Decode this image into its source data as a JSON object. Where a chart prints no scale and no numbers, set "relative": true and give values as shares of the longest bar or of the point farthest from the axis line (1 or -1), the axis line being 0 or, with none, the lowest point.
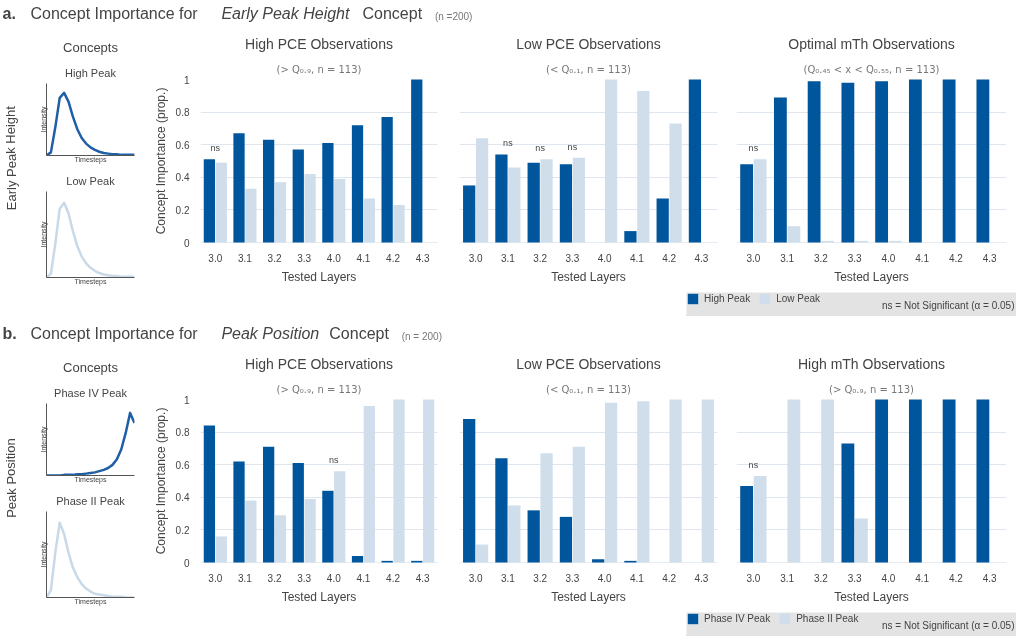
{
  "chart_data": [
    {
      "type": "line",
      "title": "High Peak",
      "xlabel": "Timesteps",
      "ylabel": "Intensity",
      "relative": true,
      "tick_labels": false,
      "categories": [
        null,
        null,
        null,
        null,
        null,
        null,
        null,
        null,
        null,
        null,
        null,
        null,
        null,
        null,
        null,
        null,
        null,
        null,
        null,
        null,
        null
      ],
      "series": [
        {
          "color": "#1f5fa6",
          "values": [
            0,
            0.05,
            0.45,
            0.92,
            1.0,
            0.86,
            0.62,
            0.42,
            0.28,
            0.19,
            0.13,
            0.09,
            0.06,
            0.04,
            0.03,
            0.02,
            0.02,
            0.01,
            0.01,
            0.01,
            0.01
          ]
        }
      ],
      "annotations": [
        "a.",
        "Concept Importance for ",
        "Early Peak Height",
        " Concept",
        "(n =200)",
        "Concepts",
        "Early Peak Height"
      ]
    },
    {
      "type": "line",
      "title": "Low Peak",
      "xlabel": "Timesteps",
      "ylabel": "Intensity",
      "relative": true,
      "tick_labels": false,
      "categories": [
        null,
        null,
        null,
        null,
        null,
        null,
        null,
        null,
        null,
        null,
        null,
        null,
        null,
        null,
        null,
        null,
        null,
        null,
        null,
        null,
        null
      ],
      "series": [
        {
          "color": "#c9d9e8",
          "values": [
            0,
            0.05,
            0.45,
            0.92,
            1.0,
            0.86,
            0.62,
            0.42,
            0.28,
            0.19,
            0.13,
            0.09,
            0.06,
            0.04,
            0.03,
            0.02,
            0.02,
            0.01,
            0.01,
            0.01,
            0.01
          ]
        }
      ]
    },
    {
      "type": "bar",
      "title": "High PCE Observations",
      "subtitle": "(> Q₀.₉, n = 113)",
      "xlabel": "Tested Layers",
      "ylabel": "Concept Importance (prop.)",
      "categories": [
        "3.0",
        "3.1",
        "3.2",
        "3.3",
        "4.0",
        "4.1",
        "4.2",
        "4.3"
      ],
      "ylim": [
        0,
        1
      ],
      "yticks": [
        0,
        0.2,
        0.4,
        0.6,
        0.8,
        1
      ],
      "grid": "y",
      "series": [
        {
          "color": "#00569c",
          "values": [
            0.51,
            0.67,
            0.63,
            0.57,
            0.61,
            0.72,
            0.77,
            1.0
          ]
        },
        {
          "color": "#cfdeea",
          "values": [
            0.49,
            0.33,
            0.37,
            0.42,
            0.39,
            0.27,
            0.23,
            0
          ]
        }
      ],
      "annotations": [
        {
          "text": "ns",
          "x": "3.0",
          "y": 0.51
        }
      ]
    },
    {
      "type": "bar",
      "title": "Low PCE Observations",
      "subtitle": "(< Q₀.₁, n = 113)",
      "xlabel": "Tested Layers",
      "categories": [
        "3.0",
        "3.1",
        "3.2",
        "3.3",
        "4.0",
        "4.1",
        "4.2",
        "4.3"
      ],
      "ylim": [
        0,
        1
      ],
      "yticks": [
        0,
        0.2,
        0.4,
        0.6,
        0.8,
        1
      ],
      "grid": "y",
      "tick_labels": "x",
      "series": [
        {
          "color": "#00569c",
          "values": [
            0.35,
            0.54,
            0.49,
            0.48,
            0,
            0.07,
            0.27,
            1.0
          ]
        },
        {
          "color": "#cfdeea",
          "values": [
            0.64,
            0.46,
            0.51,
            0.52,
            1.0,
            0.93,
            0.73,
            0
          ]
        }
      ],
      "annotations": [
        {
          "text": "ns",
          "x": "3.1",
          "y": 0.54
        },
        {
          "text": "ns",
          "x": "3.2",
          "y": 0.51
        },
        {
          "text": "ns",
          "x": "3.3",
          "y": 0.52
        }
      ]
    },
    {
      "type": "bar",
      "title": "Optimal mTh Observations",
      "subtitle": "(Q₀.₄₅ < x < Q₀.₅₅, n = 113)",
      "xlabel": "Tested Layers",
      "categories": [
        "3.0",
        "3.1",
        "3.2",
        "3.3",
        "4.0",
        "4.1",
        "4.2",
        "4.3"
      ],
      "ylim": [
        0,
        1
      ],
      "yticks": [
        0,
        0.2,
        0.4,
        0.6,
        0.8,
        1
      ],
      "grid": "y",
      "tick_labels": "x",
      "legend": "bottom",
      "series": [
        {
          "name": "High Peak",
          "color": "#00569c",
          "values": [
            0.48,
            0.89,
            0.99,
            0.98,
            0.99,
            1.0,
            1.0,
            1.0
          ]
        },
        {
          "name": "Low Peak",
          "color": "#cfdeea",
          "values": [
            0.51,
            0.1,
            0.01,
            0.01,
            0.01,
            0,
            0,
            0
          ]
        }
      ],
      "annotations": [
        {
          "text": "ns",
          "x": "3.0",
          "y": 0.51
        },
        "ns = Not Significant (α = 0.05)"
      ]
    },
    {
      "type": "line",
      "title": "Phase IV Peak",
      "xlabel": "Timesteps",
      "ylabel": "Intensity",
      "relative": true,
      "tick_labels": false,
      "categories": [
        null,
        null,
        null,
        null,
        null,
        null,
        null,
        null,
        null,
        null,
        null,
        null,
        null,
        null,
        null,
        null,
        null,
        null,
        null,
        null,
        null
      ],
      "series": [
        {
          "color": "#1f5fa6",
          "values": [
            0,
            0,
            0,
            0,
            0.01,
            0.01,
            0.01,
            0.02,
            0.02,
            0.03,
            0.04,
            0.05,
            0.07,
            0.09,
            0.12,
            0.17,
            0.26,
            0.42,
            0.68,
            1.0,
            0.84
          ]
        }
      ],
      "annotations": [
        "b.",
        "Concept Importance for ",
        "Peak Position",
        " Concept",
        "(n = 200)",
        "Concepts",
        "Peak Position"
      ]
    },
    {
      "type": "line",
      "title": "Phase II Peak",
      "xlabel": "Timesteps",
      "ylabel": "Intensity",
      "relative": true,
      "tick_labels": false,
      "categories": [
        null,
        null,
        null,
        null,
        null,
        null,
        null,
        null,
        null,
        null,
        null,
        null,
        null,
        null,
        null,
        null,
        null,
        null,
        null,
        null,
        null
      ],
      "series": [
        {
          "color": "#c9d9e8",
          "values": [
            0,
            0.1,
            0.6,
            1.0,
            0.85,
            0.6,
            0.4,
            0.27,
            0.18,
            0.12,
            0.08,
            0.05,
            0.04,
            0.03,
            0.02,
            0.01,
            0.01,
            0.01,
            0,
            0,
            0
          ]
        }
      ]
    },
    {
      "type": "bar",
      "title": "High PCE Observations",
      "subtitle": "(> Q₀.₉, n = 113)",
      "xlabel": "Tested Layers",
      "ylabel": "Concept Importance (prop.)",
      "categories": [
        "3.0",
        "3.1",
        "3.2",
        "3.3",
        "4.0",
        "4.1",
        "4.2",
        "4.3"
      ],
      "ylim": [
        0,
        1
      ],
      "yticks": [
        0,
        0.2,
        0.4,
        0.6,
        0.8,
        1
      ],
      "grid": "y",
      "series": [
        {
          "color": "#00569c",
          "values": [
            0.84,
            0.62,
            0.71,
            0.61,
            0.44,
            0.04,
            0.01,
            0.01
          ]
        },
        {
          "color": "#cfdeea",
          "values": [
            0.16,
            0.38,
            0.29,
            0.39,
            0.56,
            0.96,
            1.0,
            1.0
          ]
        }
      ],
      "annotations": [
        {
          "text": "ns",
          "x": "4.0",
          "y": 0.56
        }
      ]
    },
    {
      "type": "bar",
      "title": "Low PCE Observations",
      "subtitle": "(< Q₀.₁, n = 113)",
      "xlabel": "Tested Layers",
      "categories": [
        "3.0",
        "3.1",
        "3.2",
        "3.3",
        "4.0",
        "4.1",
        "4.2",
        "4.3"
      ],
      "ylim": [
        0,
        1
      ],
      "yticks": [
        0,
        0.2,
        0.4,
        0.6,
        0.8,
        1
      ],
      "grid": "y",
      "tick_labels": "x",
      "series": [
        {
          "color": "#00569c",
          "values": [
            0.88,
            0.64,
            0.32,
            0.28,
            0.02,
            0.01,
            0,
            0
          ]
        },
        {
          "color": "#cfdeea",
          "values": [
            0.11,
            0.35,
            0.67,
            0.71,
            0.98,
            0.99,
            1.0,
            1.0
          ]
        }
      ]
    },
    {
      "type": "bar",
      "title": "High mTh Observations",
      "subtitle": "(> Q₀.₉, n = 113)",
      "xlabel": "Tested Layers",
      "categories": [
        "3.0",
        "3.1",
        "3.2",
        "3.3",
        "4.0",
        "4.1",
        "4.2",
        "4.3"
      ],
      "ylim": [
        0,
        1
      ],
      "yticks": [
        0,
        0.2,
        0.4,
        0.6,
        0.8,
        1
      ],
      "grid": "y",
      "tick_labels": "x",
      "legend": "bottom",
      "series": [
        {
          "name": "Phase IV Peak",
          "color": "#00569c",
          "values": [
            0.47,
            0,
            0,
            0.73,
            1.0,
            1.0,
            1.0,
            1.0
          ]
        },
        {
          "name": "Phase II Peak",
          "color": "#cfdeea",
          "values": [
            0.53,
            1.0,
            1.0,
            0.27,
            0,
            0,
            0,
            0
          ]
        }
      ],
      "annotations": [
        {
          "text": "ns",
          "x": "3.0",
          "y": 0.53
        },
        "ns = Not Significant (α = 0.05)"
      ]
    }
  ]
}
